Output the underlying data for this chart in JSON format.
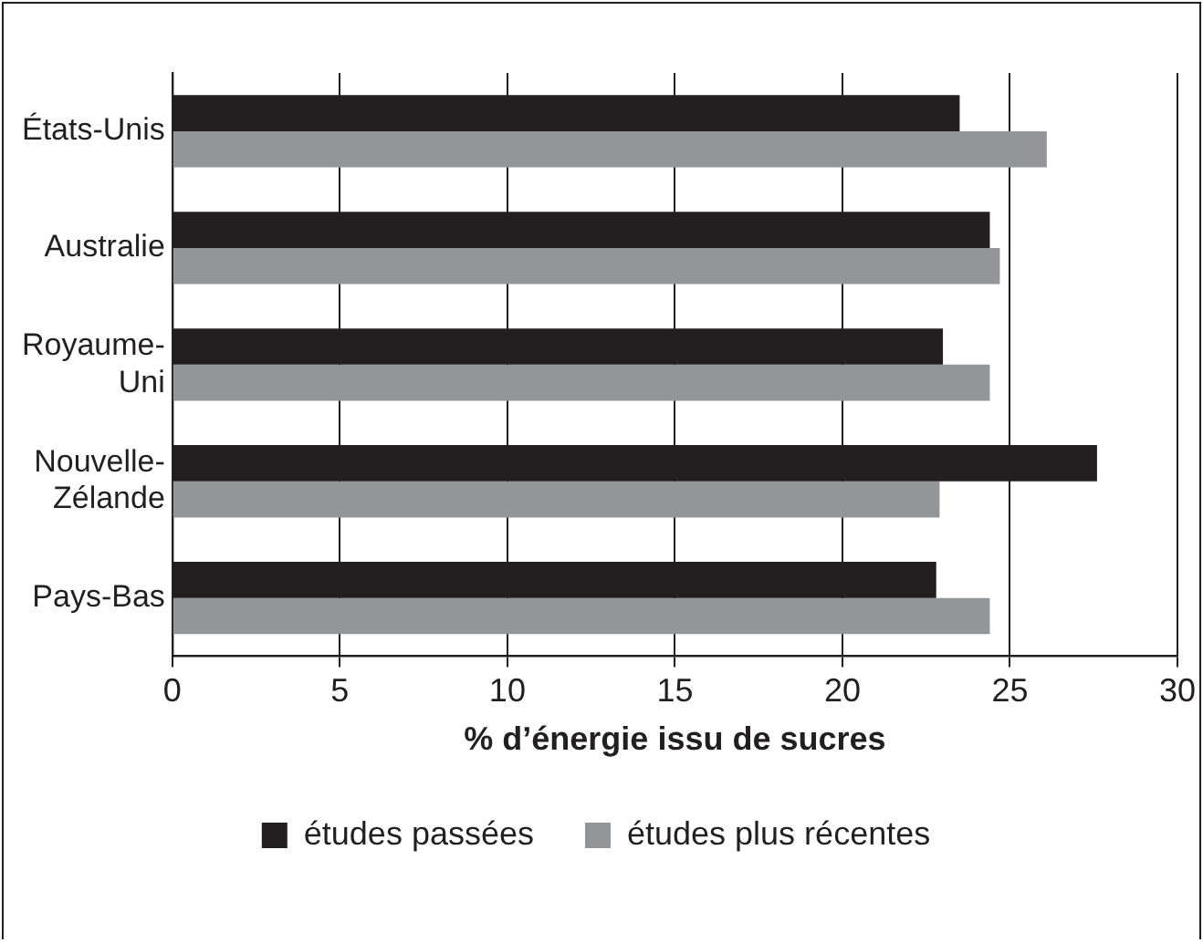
{
  "chart_data": {
    "type": "bar",
    "orientation": "horizontal",
    "xlabel": "% d’énergie issu de sucres",
    "categories": [
      "États-Unis",
      "Australie",
      "Royaume-Uni",
      "Nouvelle-Zélande",
      "Pays-Bas"
    ],
    "series": [
      {
        "name": "études passées",
        "color": "#231f20",
        "values": [
          23.5,
          24.4,
          23.0,
          27.6,
          22.8
        ]
      },
      {
        "name": "études plus récentes",
        "color": "#939598",
        "values": [
          26.1,
          24.7,
          24.4,
          22.9,
          24.4
        ]
      }
    ],
    "xlim": [
      0,
      30
    ],
    "xticks": [
      0,
      5,
      10,
      15,
      20,
      25,
      30
    ],
    "grid": "x",
    "legend": "bottom"
  }
}
